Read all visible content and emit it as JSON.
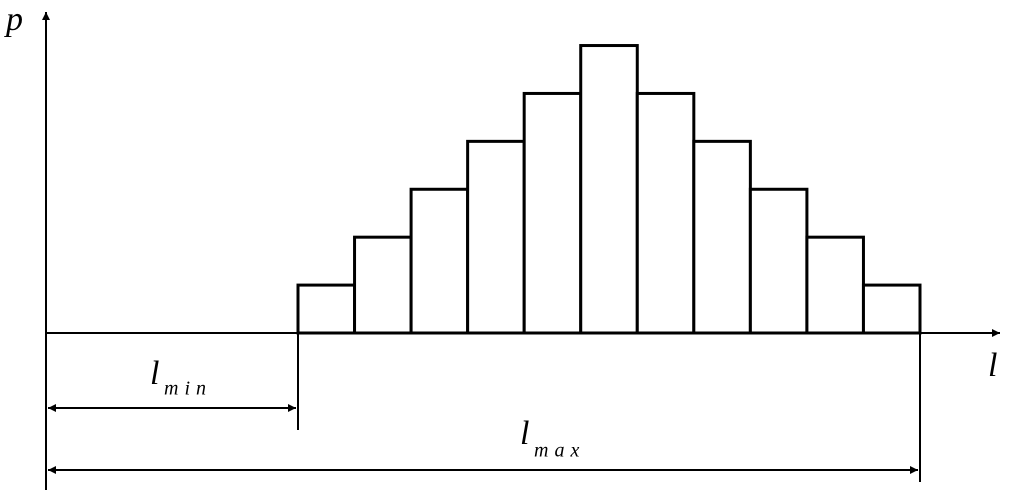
{
  "chart_data": {
    "type": "histogram",
    "y_label": "p",
    "x_label": "l",
    "min_label": {
      "symbol": "l",
      "subscript": "min"
    },
    "max_label": {
      "symbol": "l",
      "subscript": "max"
    },
    "values": [
      1,
      2,
      3,
      4,
      5,
      6,
      5,
      4,
      3,
      2,
      1
    ],
    "ylim": [
      0,
      6.7
    ],
    "color": "#ffffff"
  }
}
